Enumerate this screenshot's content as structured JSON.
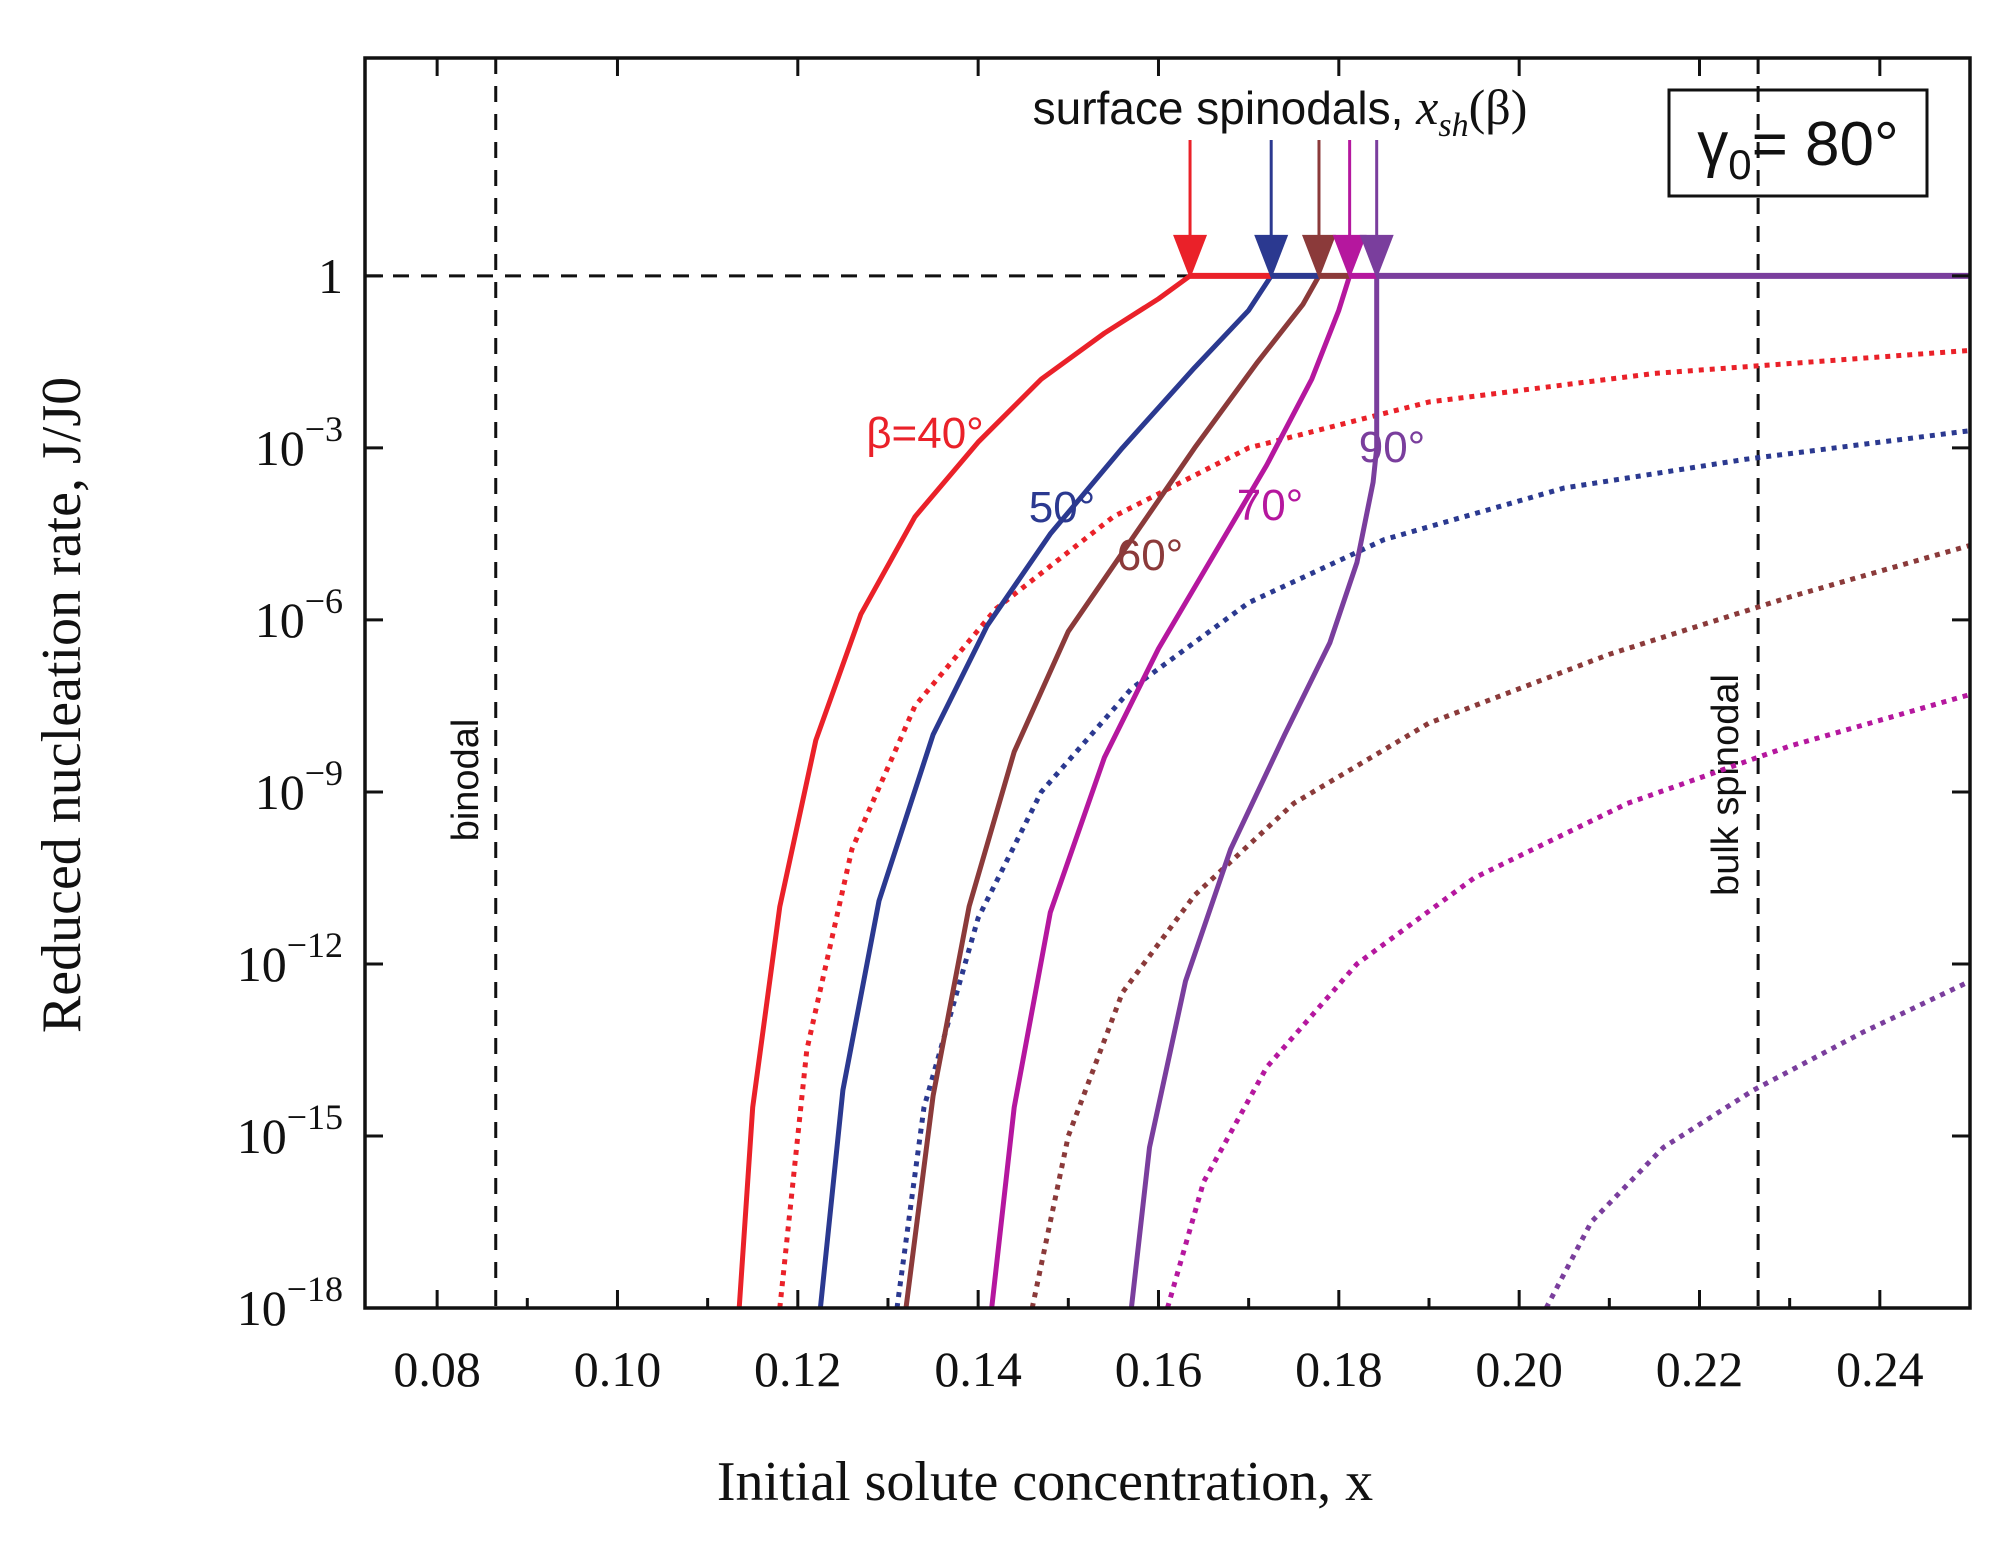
{
  "chart_data": {
    "type": "line",
    "xlabel": "Initial solute concentration, x",
    "ylabel": "Reduced nucleation rate, J/J0",
    "xlim": [
      0.072,
      0.25
    ],
    "ylim_log10": [
      -18,
      3.8
    ],
    "x_ticks": [
      0.08,
      0.1,
      0.12,
      0.14,
      0.16,
      0.18,
      0.2,
      0.22,
      0.24
    ],
    "x_tick_labels": [
      "0.08",
      "0.10",
      "0.12",
      "0.14",
      "0.16",
      "0.18",
      "0.20",
      "0.22",
      "0.24"
    ],
    "y_ticks": [
      {
        "log": 0,
        "base": "1",
        "exp": ""
      },
      {
        "log": -3,
        "base": "10",
        "exp": "−3"
      },
      {
        "log": -6,
        "base": "10",
        "exp": "−6"
      },
      {
        "log": -9,
        "base": "10",
        "exp": "−9"
      },
      {
        "log": -12,
        "base": "10",
        "exp": "−12"
      },
      {
        "log": -15,
        "base": "10",
        "exp": "−15"
      },
      {
        "log": -18,
        "base": "10",
        "exp": "−18"
      }
    ],
    "inset": {
      "gamma_symbol": "γ",
      "gamma_sub": "0",
      "gamma_eq": "= 80°"
    },
    "annotations": {
      "surface_spinodals_prefix": "surface spinodals, ",
      "x_sym": "x",
      "sh_sub": "sh",
      "beta_arg": "(β)",
      "binodal": "binodal",
      "bulk_spinodal": "bulk spinodal"
    },
    "reference_lines": {
      "binodal_x": 0.0865,
      "bulk_spinodal_x": 0.2265,
      "unity_log": 0
    },
    "series": [
      {
        "name": "β=40°",
        "color": "#ea2129",
        "spinodal_x": 0.1635,
        "solid": [
          [
            0.1135,
            -18
          ],
          [
            0.115,
            -14.5
          ],
          [
            0.118,
            -11
          ],
          [
            0.122,
            -8.1
          ],
          [
            0.127,
            -5.9
          ],
          [
            0.133,
            -4.2
          ],
          [
            0.14,
            -2.9
          ],
          [
            0.147,
            -1.8
          ],
          [
            0.154,
            -1.0
          ],
          [
            0.16,
            -0.4
          ],
          [
            0.1635,
            0
          ],
          [
            0.25,
            0
          ]
        ],
        "dotted": [
          [
            0.118,
            -18
          ],
          [
            0.121,
            -13.5
          ],
          [
            0.126,
            -10
          ],
          [
            0.133,
            -7.5
          ],
          [
            0.142,
            -5.8
          ],
          [
            0.155,
            -4.2
          ],
          [
            0.17,
            -3.0
          ],
          [
            0.19,
            -2.2
          ],
          [
            0.215,
            -1.7
          ],
          [
            0.25,
            -1.3
          ]
        ]
      },
      {
        "name": "50°",
        "color": "#2b3990",
        "spinodal_x": 0.1725,
        "solid": [
          [
            0.1225,
            -18
          ],
          [
            0.125,
            -14.2
          ],
          [
            0.129,
            -10.9
          ],
          [
            0.135,
            -8.0
          ],
          [
            0.141,
            -6.1
          ],
          [
            0.148,
            -4.5
          ],
          [
            0.156,
            -3.0
          ],
          [
            0.164,
            -1.6
          ],
          [
            0.17,
            -0.6
          ],
          [
            0.1725,
            0
          ]
        ],
        "dotted": [
          [
            0.131,
            -18
          ],
          [
            0.134,
            -14.5
          ],
          [
            0.14,
            -11.2
          ],
          [
            0.147,
            -9.0
          ],
          [
            0.157,
            -7.2
          ],
          [
            0.17,
            -5.7
          ],
          [
            0.185,
            -4.6
          ],
          [
            0.205,
            -3.7
          ],
          [
            0.225,
            -3.2
          ],
          [
            0.25,
            -2.7
          ]
        ]
      },
      {
        "name": "60°",
        "color": "#8b3a3a",
        "spinodal_x": 0.1778,
        "solid": [
          [
            0.132,
            -18
          ],
          [
            0.135,
            -14.3
          ],
          [
            0.139,
            -11.0
          ],
          [
            0.144,
            -8.3
          ],
          [
            0.15,
            -6.2
          ],
          [
            0.157,
            -4.6
          ],
          [
            0.164,
            -3.0
          ],
          [
            0.171,
            -1.5
          ],
          [
            0.176,
            -0.5
          ],
          [
            0.1778,
            0
          ]
        ],
        "dotted": [
          [
            0.146,
            -18
          ],
          [
            0.15,
            -15.0
          ],
          [
            0.156,
            -12.5
          ],
          [
            0.164,
            -10.8
          ],
          [
            0.175,
            -9.2
          ],
          [
            0.19,
            -7.8
          ],
          [
            0.21,
            -6.6
          ],
          [
            0.23,
            -5.6
          ],
          [
            0.25,
            -4.7
          ]
        ]
      },
      {
        "name": "70°",
        "color": "#b5179e",
        "spinodal_x": 0.1812,
        "solid": [
          [
            0.1415,
            -18
          ],
          [
            0.144,
            -14.5
          ],
          [
            0.148,
            -11.1
          ],
          [
            0.154,
            -8.4
          ],
          [
            0.16,
            -6.5
          ],
          [
            0.166,
            -4.9
          ],
          [
            0.172,
            -3.3
          ],
          [
            0.177,
            -1.8
          ],
          [
            0.18,
            -0.6
          ],
          [
            0.1812,
            0
          ]
        ],
        "dotted": [
          [
            0.161,
            -18
          ],
          [
            0.165,
            -15.8
          ],
          [
            0.172,
            -13.8
          ],
          [
            0.182,
            -12.0
          ],
          [
            0.195,
            -10.5
          ],
          [
            0.212,
            -9.2
          ],
          [
            0.23,
            -8.2
          ],
          [
            0.25,
            -7.3
          ]
        ]
      },
      {
        "name": "90°",
        "color": "#7a3e9d",
        "spinodal_x": 0.1842,
        "solid": [
          [
            0.157,
            -18
          ],
          [
            0.159,
            -15.2
          ],
          [
            0.163,
            -12.3
          ],
          [
            0.168,
            -10.0
          ],
          [
            0.174,
            -8.0
          ],
          [
            0.179,
            -6.4
          ],
          [
            0.182,
            -5.0
          ],
          [
            0.1838,
            -3.6
          ],
          [
            0.1842,
            -3.0
          ],
          [
            0.1842,
            0
          ]
        ],
        "dotted": [
          [
            0.203,
            -18
          ],
          [
            0.208,
            -16.5
          ],
          [
            0.216,
            -15.2
          ],
          [
            0.226,
            -14.2
          ],
          [
            0.238,
            -13.2
          ],
          [
            0.25,
            -12.3
          ]
        ]
      }
    ],
    "curve_labels": [
      "β=40°",
      "50°",
      "60°",
      "70°",
      "90°"
    ]
  }
}
